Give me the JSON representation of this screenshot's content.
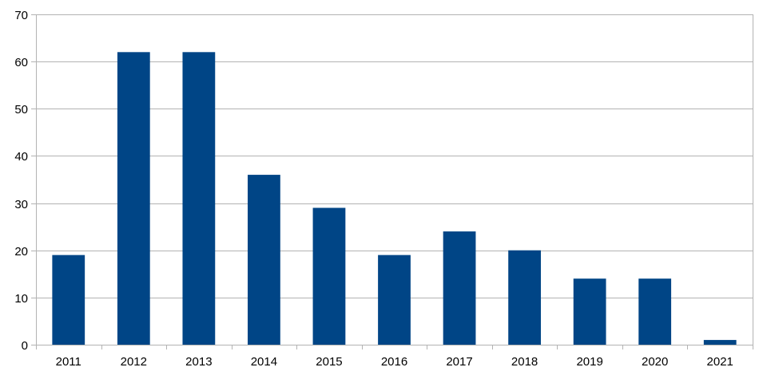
{
  "chart_data": {
    "type": "bar",
    "title": "",
    "xlabel": "",
    "ylabel": "",
    "categories": [
      "2011",
      "2012",
      "2013",
      "2014",
      "2015",
      "2016",
      "2017",
      "2018",
      "2019",
      "2020",
      "2021"
    ],
    "values": [
      19,
      62,
      62,
      36,
      29,
      19,
      24,
      20,
      14,
      14,
      1
    ],
    "ylim": [
      0,
      70
    ],
    "yticks": [
      0,
      10,
      20,
      30,
      40,
      50,
      60,
      70
    ],
    "grid": true,
    "legend": "none",
    "colors": {
      "bar": "#004586",
      "grid": "#b3b3b3",
      "axis": "#b3b3b3",
      "text": "#000000"
    }
  }
}
